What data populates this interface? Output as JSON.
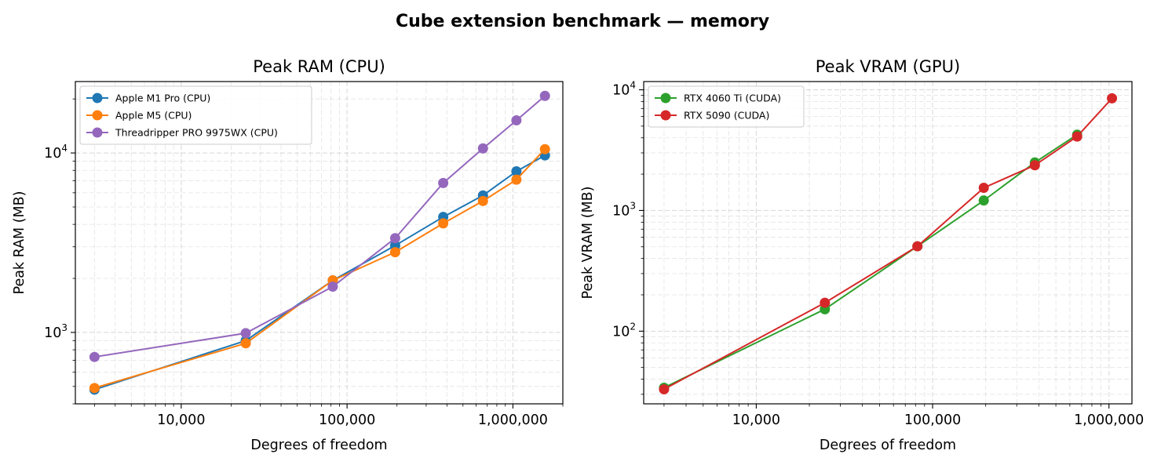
{
  "figure": {
    "suptitle": "Cube extension benchmark — memory"
  },
  "chart_data": [
    {
      "type": "line",
      "title": "Peak RAM (CPU)",
      "xlabel": "Degrees of freedom",
      "ylabel": "Peak RAM (MB)",
      "xscale": "log",
      "yscale": "log",
      "xlim": [
        2300,
        2000000
      ],
      "ylim": [
        400,
        25000
      ],
      "xticks": [
        {
          "value": 10000,
          "label": "10,000"
        },
        {
          "value": 100000,
          "label": "100,000"
        },
        {
          "value": 1000000,
          "label": "1,000,000"
        }
      ],
      "yticks": [
        {
          "value": 1000,
          "base": "10",
          "exp": "3"
        },
        {
          "value": 10000,
          "base": "10",
          "exp": "4"
        }
      ],
      "grid": true,
      "legend_position": "top-left",
      "series": [
        {
          "name": "Apple M1 Pro (CPU)",
          "color": "#1f77b4",
          "x": [
            3000,
            24500,
            82000,
            195000,
            380000,
            660000,
            1050000,
            1560000
          ],
          "y": [
            480,
            900,
            1950,
            3050,
            4400,
            5800,
            7900,
            9700
          ]
        },
        {
          "name": "Apple M5 (CPU)",
          "color": "#ff7f0e",
          "x": [
            3000,
            24500,
            82000,
            195000,
            380000,
            660000,
            1050000,
            1560000
          ],
          "y": [
            490,
            870,
            1950,
            2800,
            4050,
            5400,
            7100,
            10500
          ]
        },
        {
          "name": "Threadripper PRO 9975WX (CPU)",
          "color": "#9467bd",
          "x": [
            3000,
            24500,
            82000,
            195000,
            380000,
            660000,
            1050000,
            1560000
          ],
          "y": [
            730,
            990,
            1800,
            3350,
            6800,
            10600,
            15200,
            20800
          ]
        }
      ]
    },
    {
      "type": "line",
      "title": "Peak VRAM (GPU)",
      "xlabel": "Degrees of freedom",
      "ylabel": "Peak VRAM (MB)",
      "xscale": "log",
      "yscale": "log",
      "xlim": [
        2300,
        1350000
      ],
      "ylim": [
        25,
        11700
      ],
      "xticks": [
        {
          "value": 10000,
          "label": "10,000"
        },
        {
          "value": 100000,
          "label": "100,000"
        },
        {
          "value": 1000000,
          "label": "1,000,000"
        }
      ],
      "yticks": [
        {
          "value": 100,
          "base": "10",
          "exp": "2"
        },
        {
          "value": 1000,
          "base": "10",
          "exp": "3"
        },
        {
          "value": 10000,
          "base": "10",
          "exp": "4"
        }
      ],
      "grid": true,
      "legend_position": "top-left",
      "series": [
        {
          "name": "RTX 4060 Ti (CUDA)",
          "color": "#2ca02c",
          "x": [
            3000,
            24500,
            82000,
            195000,
            380000,
            660000
          ],
          "y": [
            34,
            152,
            505,
            1210,
            2500,
            4250
          ]
        },
        {
          "name": "RTX 5090 (CUDA)",
          "color": "#d62728",
          "x": [
            3000,
            24500,
            82000,
            195000,
            380000,
            660000,
            1040000
          ],
          "y": [
            33,
            172,
            505,
            1540,
            2370,
            4100,
            8500
          ]
        }
      ]
    }
  ]
}
